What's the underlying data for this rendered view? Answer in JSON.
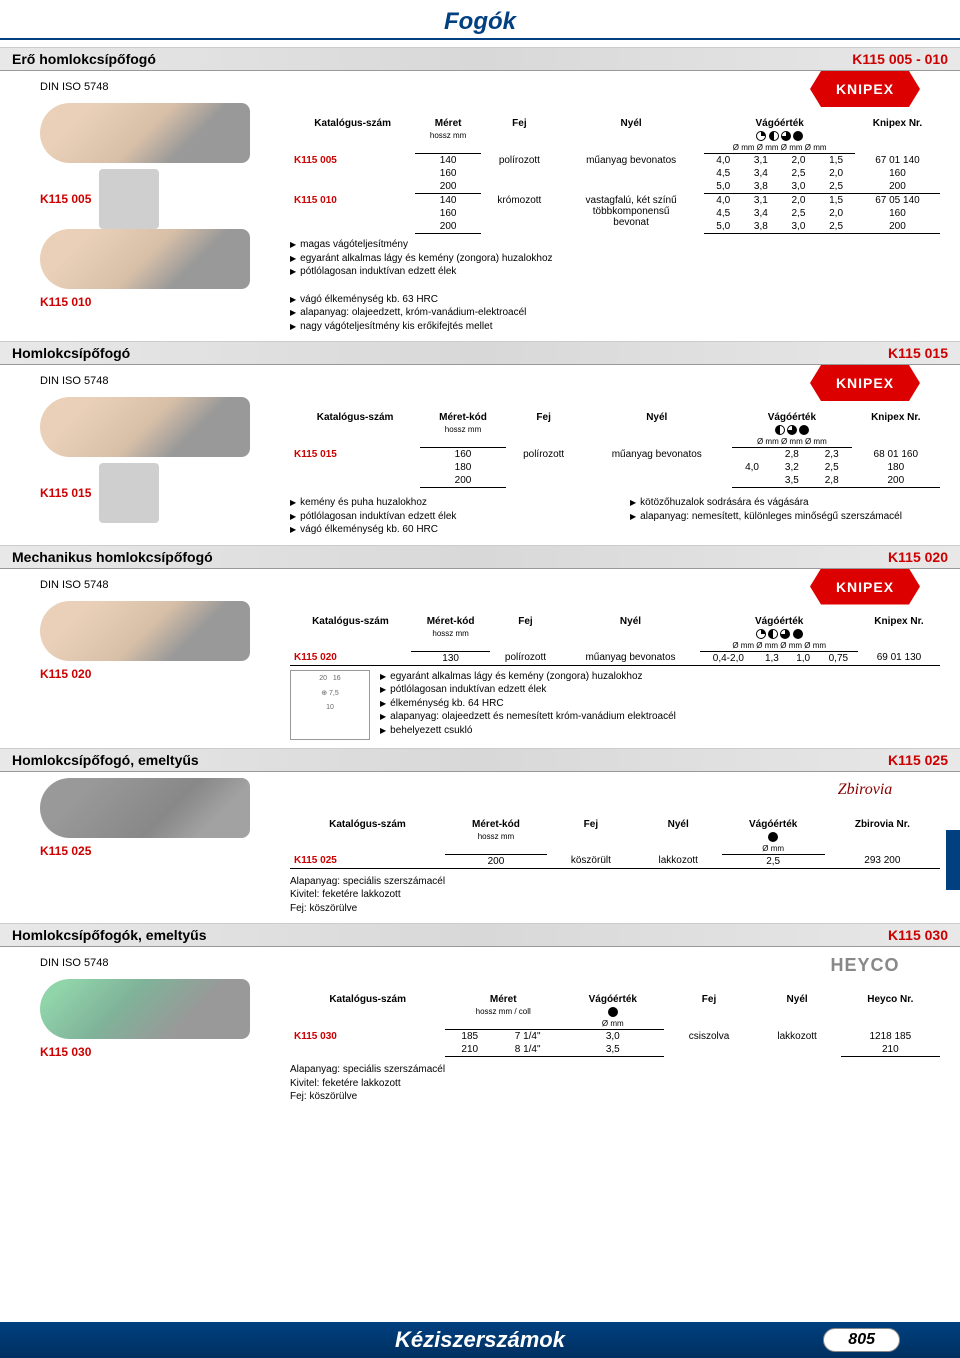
{
  "page": {
    "title": "Fogók",
    "footer": "Kéziszerszámok",
    "number": "805"
  },
  "sections": [
    {
      "title": "Erő homlokcsípőfogó",
      "code": "K115 005 - 010",
      "din": "DIN ISO 5748",
      "brand": "KNIPEX",
      "brand_type": "knipex",
      "img_labels": [
        "K115 005",
        "K115 010"
      ],
      "table": {
        "headers": [
          "Katalógus-szám",
          "Méret",
          "Fej",
          "Nyél",
          "Vágóérték",
          "Knipex Nr."
        ],
        "sub": [
          "",
          "hossz mm",
          "",
          "",
          "Ø mm Ø mm Ø mm Ø mm",
          ""
        ],
        "vcols": 4,
        "rows": [
          {
            "code": "K115 005",
            "sizes": [
              "140",
              "160",
              "200"
            ],
            "fej": "polírozott",
            "nyel": "műanyag bevonatos",
            "v": [
              [
                "4,0",
                "3,1",
                "2,0",
                "1,5"
              ],
              [
                "4,5",
                "3,4",
                "2,5",
                "2,0"
              ],
              [
                "5,0",
                "3,8",
                "3,0",
                "2,5"
              ]
            ],
            "nr": [
              "67 01 140",
              "160",
              "200"
            ]
          },
          {
            "code": "K115 010",
            "sizes": [
              "140",
              "160",
              "200"
            ],
            "fej": "krómozott",
            "nyel": "vastagfalú, két színű\ntöbbkomponensű\nbevonat",
            "v": [
              [
                "4,0",
                "3,1",
                "2,0",
                "1,5"
              ],
              [
                "4,5",
                "3,4",
                "2,5",
                "2,0"
              ],
              [
                "5,0",
                "3,8",
                "3,0",
                "2,5"
              ]
            ],
            "nr": [
              "67 05 140",
              "160",
              "200"
            ]
          }
        ]
      },
      "bullets_a": [
        "magas vágóteljesítmény",
        "egyaránt alkalmas lágy és kemény (zongora) huzalokhoz",
        "pótlólagosan induktívan edzett élek"
      ],
      "bullets_b": [
        "vágó élkeménység kb. 63 HRC",
        "alapanyag: olajeedzett, króm-vanádium-elektroacél",
        "nagy vágóteljesítmény kis erőkifejtés mellet"
      ]
    },
    {
      "title": "Homlokcsípőfogó",
      "code": "K115 015",
      "din": "DIN ISO 5748",
      "brand": "KNIPEX",
      "brand_type": "knipex",
      "img_labels": [
        "K115 015"
      ],
      "table": {
        "headers": [
          "Katalógus-szám",
          "Méret-kód",
          "Fej",
          "Nyél",
          "Vágóérték",
          "Knipex Nr."
        ],
        "sub": [
          "",
          "hossz mm",
          "",
          "",
          "Ø mm Ø mm Ø mm",
          ""
        ],
        "vcols": 3,
        "rows": [
          {
            "code": "K115 015",
            "sizes": [
              "160",
              "180",
              "200"
            ],
            "fej": "polírozott",
            "nyel": "műanyag bevonatos",
            "v": [
              [
                "",
                "2,8",
                "2,3"
              ],
              [
                "4,0",
                "3,2",
                "2,5"
              ],
              [
                "",
                "3,5",
                "2,8"
              ]
            ],
            "nr": [
              "68 01 160",
              "180",
              "200"
            ]
          }
        ]
      },
      "bullets_two": {
        "left": [
          "kemény és puha huzalokhoz",
          "pótlólagosan induktívan edzett élek",
          "vágó élkeménység kb. 60 HRC"
        ],
        "right": [
          "kötözőhuzalok sodrására és vágására",
          "alapanyag: nemesített, különleges minőségű szerszámacél"
        ]
      }
    },
    {
      "title": "Mechanikus homlokcsípőfogó",
      "code": "K115 020",
      "din": "DIN ISO 5748",
      "brand": "KNIPEX",
      "brand_type": "knipex",
      "img_labels": [
        "K115 020"
      ],
      "table": {
        "headers": [
          "Katalógus-szám",
          "Méret-kód",
          "Fej",
          "Nyél",
          "Vágóérték",
          "Knipex Nr."
        ],
        "sub": [
          "",
          "hossz mm",
          "",
          "",
          "Ø mm Ø mm Ø mm Ø mm",
          ""
        ],
        "vcols": 4,
        "rows": [
          {
            "code": "K115 020",
            "sizes": [
              "130"
            ],
            "fej": "polírozott",
            "nyel": "műanyag bevonatos",
            "v": [
              [
                "0,4-2,0",
                "1,3",
                "1,0",
                "0,75"
              ]
            ],
            "nr": [
              "69 01 130"
            ]
          }
        ]
      },
      "diagram_labels": {
        "a": "20",
        "b": "16",
        "c": "7,5",
        "d": "10"
      },
      "bullets_a": [
        "egyaránt alkalmas lágy és kemény (zongora) huzalokhoz",
        "pótlólagosan induktívan edzett élek",
        "élkeménység kb. 64 HRC",
        "alapanyag: olajeedzett és nemesített króm-vanádium elektroacél",
        "behelyezett csukló"
      ]
    },
    {
      "title": "Homlokcsípőfogó, emeltyűs",
      "code": "K115 025",
      "brand": "Zbirovia",
      "brand_type": "zbirovia",
      "img_labels": [
        "K115 025"
      ],
      "table": {
        "headers": [
          "Katalógus-szám",
          "Méret-kód",
          "Fej",
          "Nyél",
          "Vágóérték",
          "Zbirovia Nr."
        ],
        "sub": [
          "",
          "hossz mm",
          "",
          "",
          "Ø mm",
          ""
        ],
        "vcols": 1,
        "rows": [
          {
            "code": "K115 025",
            "sizes": [
              "200"
            ],
            "fej": "köszörült",
            "nyel": "lakkozott",
            "v": [
              [
                "2,5"
              ]
            ],
            "nr": [
              "293 200"
            ]
          }
        ]
      },
      "notes": [
        "Alapanyag: speciális szerszámacél",
        "Kivitel: feketére lakkozott",
        "Fej: köszörülve"
      ]
    },
    {
      "title": "Homlokcsípőfogók, emeltyűs",
      "code": "K115 030",
      "din": "DIN ISO 5748",
      "brand": "HEYCO",
      "brand_type": "heyco",
      "img_labels": [
        "K115 030"
      ],
      "table": {
        "headers": [
          "Katalógus-szám",
          "Méret",
          "Vágóérték",
          "Fej",
          "Nyél",
          "Heyco Nr."
        ],
        "sub": [
          "",
          "hossz mm / coll",
          "Ø mm",
          "",
          "",
          ""
        ],
        "vcols": 1,
        "variant": "heyco",
        "rows": [
          {
            "code": "K115 030",
            "sizes": [
              "185",
              "210"
            ],
            "coll": [
              "7 1/4\"",
              "8 1/4\""
            ],
            "v": [
              [
                "3,0"
              ],
              [
                "3,5"
              ]
            ],
            "fej": "csiszolva",
            "nyel": "lakkozott",
            "nr": [
              "1218 185",
              "210"
            ]
          }
        ]
      },
      "notes": [
        "Alapanyag: speciális szerszámacél",
        "Kivitel: feketére lakkozott",
        "Fej: köszörülve"
      ]
    }
  ]
}
